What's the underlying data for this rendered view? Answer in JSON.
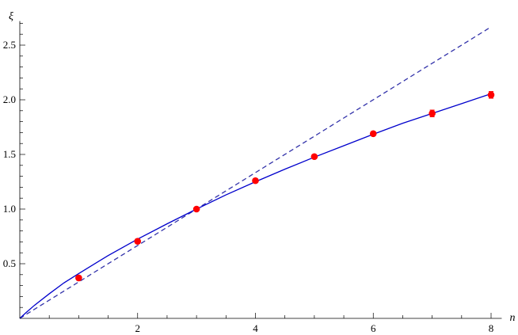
{
  "chart_data": {
    "type": "line",
    "title": "",
    "xlabel": "n",
    "ylabel": "ξ",
    "xlim": [
      0,
      8.1
    ],
    "ylim": [
      0,
      2.72
    ],
    "x_ticks": [
      {
        "value": 2,
        "label": "2"
      },
      {
        "value": 4,
        "label": "4"
      },
      {
        "value": 6,
        "label": "6"
      },
      {
        "value": 8,
        "label": "8"
      }
    ],
    "y_ticks": [
      {
        "value": 0.5,
        "label": "0.5"
      },
      {
        "value": 1.0,
        "label": "1.0"
      },
      {
        "value": 1.5,
        "label": "1.5"
      },
      {
        "value": 2.0,
        "label": "2.0"
      },
      {
        "value": 2.5,
        "label": "2.5"
      }
    ],
    "grid": false,
    "series": [
      {
        "style": "points",
        "color": "#ff0000",
        "points": [
          {
            "x": 1,
            "y": 0.37,
            "err": 0.02
          },
          {
            "x": 2,
            "y": 0.705,
            "err": 0.02
          },
          {
            "x": 3,
            "y": 1.0,
            "err": 0.01
          },
          {
            "x": 4,
            "y": 1.26,
            "err": 0.01
          },
          {
            "x": 5,
            "y": 1.48,
            "err": 0.01
          },
          {
            "x": 6,
            "y": 1.69,
            "err": 0.01
          },
          {
            "x": 7,
            "y": 1.875,
            "err": 0.03
          },
          {
            "x": 8,
            "y": 2.045,
            "err": 0.03
          }
        ]
      },
      {
        "style": "solid",
        "color": "#0000cc",
        "x": [
          0,
          0.1,
          0.25,
          0.5,
          0.75,
          1,
          1.5,
          2,
          2.5,
          3,
          3.5,
          4,
          4.5,
          5,
          5.5,
          6,
          6.5,
          7,
          7.5,
          8
        ],
        "y": [
          0,
          0.05,
          0.12,
          0.225,
          0.325,
          0.41,
          0.575,
          0.725,
          0.865,
          1.0,
          1.13,
          1.25,
          1.365,
          1.475,
          1.58,
          1.685,
          1.785,
          1.875,
          1.965,
          2.055
        ]
      },
      {
        "style": "dashed",
        "color": "#3333aa",
        "x": [
          0,
          8
        ],
        "y": [
          0,
          2.667
        ]
      }
    ]
  }
}
